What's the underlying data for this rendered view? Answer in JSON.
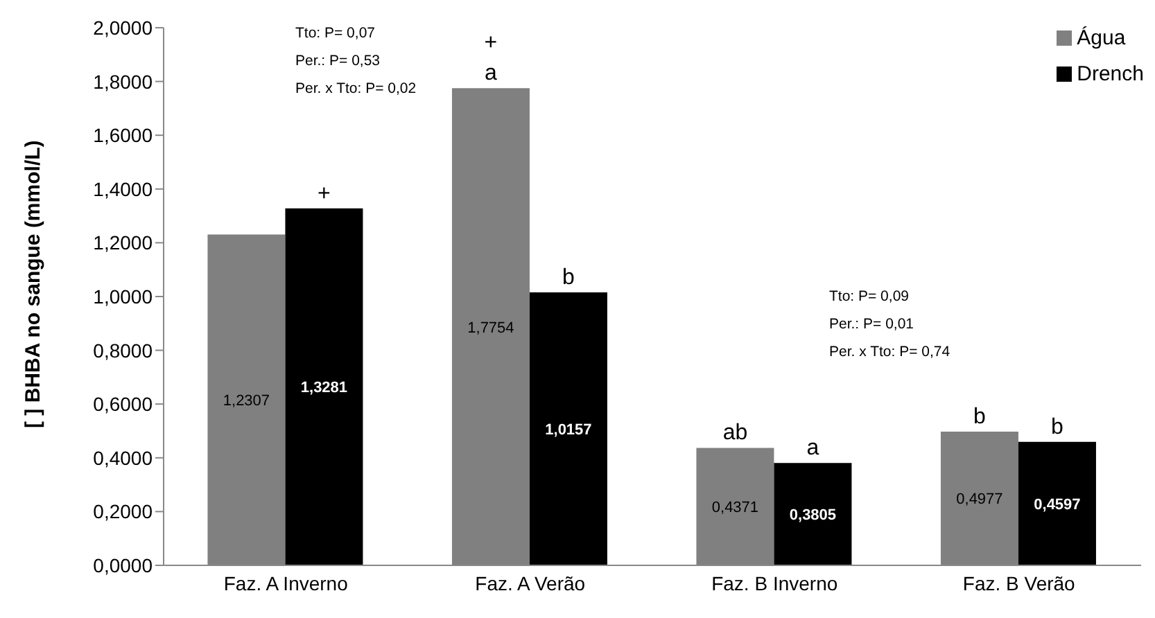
{
  "chart_data": {
    "type": "bar",
    "ylabel": "[ ] BHBA no sangue (mmol/L)",
    "categories": [
      "Faz. A Inverno",
      "Faz. A Verão",
      "Faz. B Inverno",
      "Faz. B Verão"
    ],
    "series": [
      {
        "name": "Água",
        "color": "#808080",
        "values": [
          1.2307,
          1.7754,
          0.4371,
          0.4977
        ],
        "value_labels": [
          "1,2307",
          "1,7754",
          "0,4371",
          "0,4977"
        ]
      },
      {
        "name": "Drench",
        "color": "#000000",
        "values": [
          1.3281,
          1.0157,
          0.3805,
          0.4597
        ],
        "value_labels": [
          "1,3281",
          "1,0157",
          "0,3805",
          "0,4597"
        ]
      }
    ],
    "ylim": [
      0,
      2
    ],
    "yticks": [
      {
        "value": 0,
        "label": "0,0000"
      },
      {
        "value": 0.2,
        "label": "0,2000"
      },
      {
        "value": 0.4,
        "label": "0,4000"
      },
      {
        "value": 0.6,
        "label": "0,6000"
      },
      {
        "value": 0.8,
        "label": "0,8000"
      },
      {
        "value": 1.0,
        "label": "1,0000"
      },
      {
        "value": 1.2,
        "label": "1,2000"
      },
      {
        "value": 1.4,
        "label": "1,4000"
      },
      {
        "value": 1.6,
        "label": "1,6000"
      },
      {
        "value": 1.8,
        "label": "1,8000"
      },
      {
        "value": 2.0,
        "label": "2,0000"
      }
    ],
    "grid": false,
    "legend": "top right",
    "annotations": [
      "Tto: P= 0,07",
      "Per.: P= 0,53",
      "Per. x Tto: P= 0,02",
      "Tto: P= 0,09",
      "Per.: P= 0,01",
      "Per. x Tto: P= 0,74",
      {
        "text": "+",
        "x": "Faz. A Inverno",
        "y": 1.3281
      },
      {
        "text": "+",
        "x": "Faz. A Verão",
        "y": 1.7754
      },
      {
        "text": "a",
        "x": "Faz. A Verão",
        "y": 1.7754
      },
      {
        "text": "b",
        "x": "Faz. A Verão",
        "y": 1.0157
      },
      {
        "text": "ab",
        "x": "Faz. B Inverno",
        "y": 0.4371
      },
      {
        "text": "a",
        "x": "Faz. B Inverno",
        "y": 0.3805
      },
      {
        "text": "b",
        "x": "Faz. B Verão",
        "y": 0.4977
      },
      {
        "text": "b",
        "x": "Faz. B Verão",
        "y": 0.4597
      }
    ]
  }
}
